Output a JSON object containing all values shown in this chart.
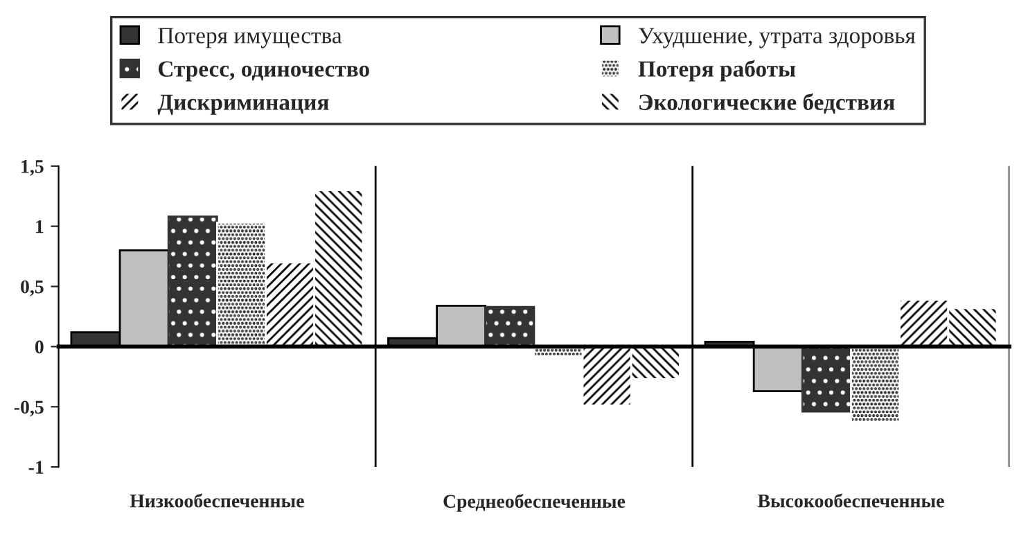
{
  "chart_data": {
    "type": "bar",
    "categories": [
      "Низкообеспеченные",
      "Среднеобеспеченные",
      "Высокообеспеченные"
    ],
    "series": [
      {
        "name": "Потеря имущества",
        "color": "#333333",
        "values": [
          0.12,
          0.07,
          0.04
        ]
      },
      {
        "name": "Ухудшение, утрата здоровья",
        "color": "#c0c0c0",
        "values": [
          0.8,
          0.34,
          -0.37
        ]
      },
      {
        "name": "Стресс, одиночество",
        "color": "#333333",
        "values": [
          1.08,
          0.33,
          -0.54
        ]
      },
      {
        "name": "Потеря работы",
        "color": "#ffffff",
        "values": [
          1.03,
          -0.08,
          -0.63
        ]
      },
      {
        "name": "Дискриминация",
        "color": "#ffffff",
        "values": [
          0.7,
          -0.49,
          0.39
        ]
      },
      {
        "name": "Экологические бедствия",
        "color": "#ffffff",
        "values": [
          1.3,
          -0.27,
          0.32
        ]
      }
    ],
    "ylim": [
      -1,
      1.5
    ],
    "yticks": [
      -1,
      {
        "value": -0.5,
        "label": "-0,5"
      },
      0,
      {
        "value": 0.5,
        "label": "0,5"
      },
      1,
      {
        "value": 1.5,
        "label": "1,5"
      }
    ],
    "grid": "x",
    "legend": "top"
  }
}
